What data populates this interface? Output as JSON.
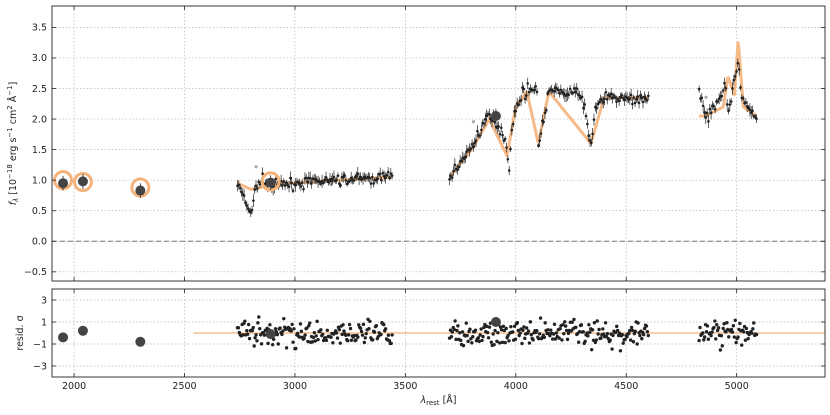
{
  "chart_data": [
    {
      "type": "scatter",
      "panel": "main",
      "ylabel_parts": {
        "f": "f",
        "sub": "λ",
        "open": " [10",
        "exp1": "−18",
        "mid": " erg s",
        "exp2": "−1",
        "mid2": " cm",
        "exp3": "2",
        "mid3": " Å",
        "exp4": "−1",
        "close": "]"
      },
      "xlim": [
        1900,
        5400
      ],
      "ylim": [
        -0.65,
        3.85
      ],
      "x_ticks": [
        2000,
        2500,
        3000,
        3500,
        4000,
        4500,
        5000
      ],
      "y_ticks": [
        -0.5,
        0.0,
        0.5,
        1.0,
        1.5,
        2.0,
        2.5,
        3.0,
        3.5
      ],
      "y_tick_labels": [
        "−0.5",
        "0.0",
        "0.5",
        "1.0",
        "1.5",
        "2.0",
        "2.5",
        "3.0",
        "3.5"
      ],
      "grid": true,
      "zero_line": 0.0,
      "photometry": {
        "x": [
          1950,
          2040,
          2300,
          2890,
          3910
        ],
        "y": [
          0.95,
          0.98,
          0.83,
          0.96,
          2.05
        ],
        "model_y": [
          1.0,
          0.97,
          0.88,
          0.98,
          2.05
        ],
        "has_model_ring": [
          true,
          true,
          true,
          true,
          false
        ]
      },
      "spectrum_segments": [
        {
          "x_range": [
            2740,
            3440
          ],
          "anchors": [
            [
              2740,
              0.95
            ],
            [
              2780,
              0.6
            ],
            [
              2800,
              0.45
            ],
            [
              2820,
              0.85
            ],
            [
              2850,
              1.0
            ],
            [
              2900,
              0.9
            ],
            [
              3000,
              0.95
            ],
            [
              3100,
              0.98
            ],
            [
              3200,
              1.0
            ],
            [
              3300,
              1.02
            ],
            [
              3440,
              1.05
            ]
          ],
          "model_anchors": [
            [
              2740,
              0.95
            ],
            [
              2800,
              0.85
            ],
            [
              2900,
              0.92
            ],
            [
              3000,
              0.96
            ],
            [
              3200,
              1.0
            ],
            [
              3440,
              1.05
            ]
          ]
        },
        {
          "x_range": [
            3700,
            4600
          ],
          "anchors": [
            [
              3700,
              1.05
            ],
            [
              3750,
              1.3
            ],
            [
              3800,
              1.55
            ],
            [
              3850,
              1.9
            ],
            [
              3880,
              2.05
            ],
            [
              3920,
              1.9
            ],
            [
              3950,
              1.7
            ],
            [
              3970,
              1.25
            ],
            [
              3990,
              2.05
            ],
            [
              4030,
              2.45
            ],
            [
              4100,
              2.5
            ],
            [
              4102,
              1.55
            ],
            [
              4150,
              2.45
            ],
            [
              4200,
              2.45
            ],
            [
              4300,
              2.4
            ],
            [
              4340,
              1.55
            ],
            [
              4360,
              2.2
            ],
            [
              4400,
              2.35
            ],
            [
              4500,
              2.32
            ],
            [
              4600,
              2.35
            ]
          ],
          "model_anchors": [
            [
              3700,
              1.05
            ],
            [
              3800,
              1.5
            ],
            [
              3880,
              2.0
            ],
            [
              3960,
              1.4
            ],
            [
              4000,
              2.2
            ],
            [
              4050,
              2.45
            ],
            [
              4102,
              1.6
            ],
            [
              4150,
              2.45
            ],
            [
              4340,
              1.6
            ],
            [
              4400,
              2.35
            ],
            [
              4600,
              2.35
            ]
          ]
        },
        {
          "x_range": [
            4830,
            5090
          ],
          "anchors": [
            [
              4830,
              2.5
            ],
            [
              4860,
              2.0
            ],
            [
              4900,
              2.2
            ],
            [
              4950,
              2.6
            ],
            [
              4960,
              2.1
            ],
            [
              4990,
              2.6
            ],
            [
              5007,
              3.0
            ],
            [
              5020,
              2.4
            ],
            [
              5060,
              2.1
            ],
            [
              5090,
              2.05
            ]
          ],
          "model_anchors": [
            [
              4860,
              2.05
            ],
            [
              4940,
              2.2
            ],
            [
              4960,
              2.7
            ],
            [
              4990,
              2.4
            ],
            [
              5007,
              3.3
            ],
            [
              5030,
              2.2
            ],
            [
              5090,
              2.05
            ]
          ]
        }
      ]
    },
    {
      "type": "scatter",
      "panel": "residuals",
      "ylabel": "resid. σ",
      "xlabel_parts": {
        "lambda": "λ",
        "sub": "rest",
        "unit": " [Å]"
      },
      "xlim": [
        1900,
        5400
      ],
      "ylim": [
        -4.0,
        4.0
      ],
      "x_ticks": [
        2000,
        2500,
        3000,
        3500,
        4000,
        4500,
        5000
      ],
      "x_tick_labels": [
        "2000",
        "2500",
        "3000",
        "3500",
        "4000",
        "4500",
        "5000"
      ],
      "y_ticks": [
        -3,
        -1,
        1,
        3
      ],
      "y_tick_labels": [
        "−3",
        "−1",
        "1",
        "3"
      ],
      "grid": true,
      "zero_line": 0.0,
      "photometry_resid": {
        "x": [
          1950,
          2040,
          2300,
          2890,
          3910
        ],
        "y": [
          -0.4,
          0.2,
          -0.8,
          -0.1,
          1.0
        ]
      },
      "model_line_x": [
        2540,
        5400
      ]
    }
  ],
  "colors": {
    "model": "#f4b27a",
    "data": "#222222",
    "photometry": "#444444",
    "grid": "#b5b5b5",
    "zero": "#777777",
    "outlier": "#aaaaaa"
  }
}
